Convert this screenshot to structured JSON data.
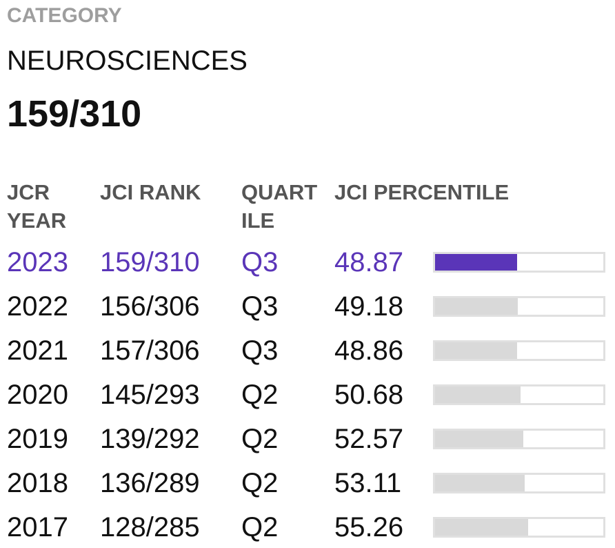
{
  "header": {
    "label": "CATEGORY",
    "category": "NEUROSCIENCES",
    "rank": "159/310"
  },
  "table": {
    "columns": [
      "JCR YEAR",
      "JCI RANK",
      "QUARTILE",
      "JCI PERCENTILE"
    ],
    "rows": [
      {
        "year": "2023",
        "rank": "159/310",
        "quartile": "Q3",
        "percentile": 48.87
      },
      {
        "year": "2022",
        "rank": "156/306",
        "quartile": "Q3",
        "percentile": 49.18
      },
      {
        "year": "2021",
        "rank": "157/306",
        "quartile": "Q3",
        "percentile": 48.86
      },
      {
        "year": "2020",
        "rank": "145/293",
        "quartile": "Q2",
        "percentile": 50.68
      },
      {
        "year": "2019",
        "rank": "139/292",
        "quartile": "Q2",
        "percentile": 52.57
      },
      {
        "year": "2018",
        "rank": "136/289",
        "quartile": "Q2",
        "percentile": 53.11
      },
      {
        "year": "2017",
        "rank": "128/285",
        "quartile": "Q2",
        "percentile": 55.26
      }
    ]
  }
}
